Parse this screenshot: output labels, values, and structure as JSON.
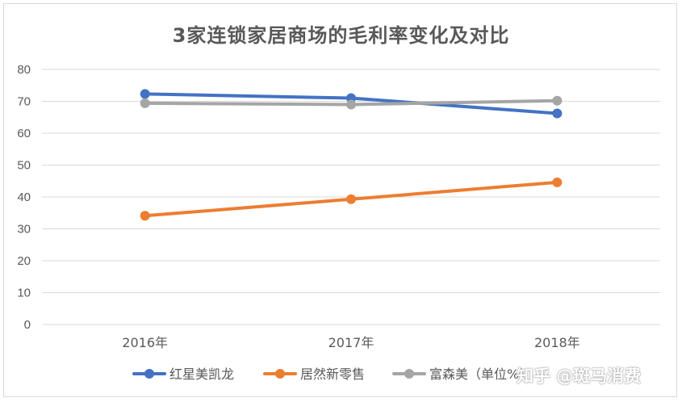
{
  "chart_data": {
    "type": "line",
    "title": "3家连锁家居商场的毛利率变化及对比",
    "categories": [
      "2016年",
      "2017年",
      "2018年"
    ],
    "ylim": [
      0,
      80
    ],
    "yticks": [
      0,
      10,
      20,
      30,
      40,
      50,
      60,
      70,
      80
    ],
    "grid": true,
    "legend_position": "bottom",
    "series": [
      {
        "name": "红星美凯龙",
        "color": "#4472c4",
        "values": [
          72.3,
          71.0,
          66.2
        ]
      },
      {
        "name": "居然新零售",
        "color": "#ed7d31",
        "values": [
          34.1,
          39.3,
          44.6
        ]
      },
      {
        "name": "富森美（单位%）",
        "color": "#a5a5a5",
        "values": [
          69.4,
          69.0,
          70.2
        ]
      }
    ]
  },
  "watermark": "知乎 @斑马消费"
}
